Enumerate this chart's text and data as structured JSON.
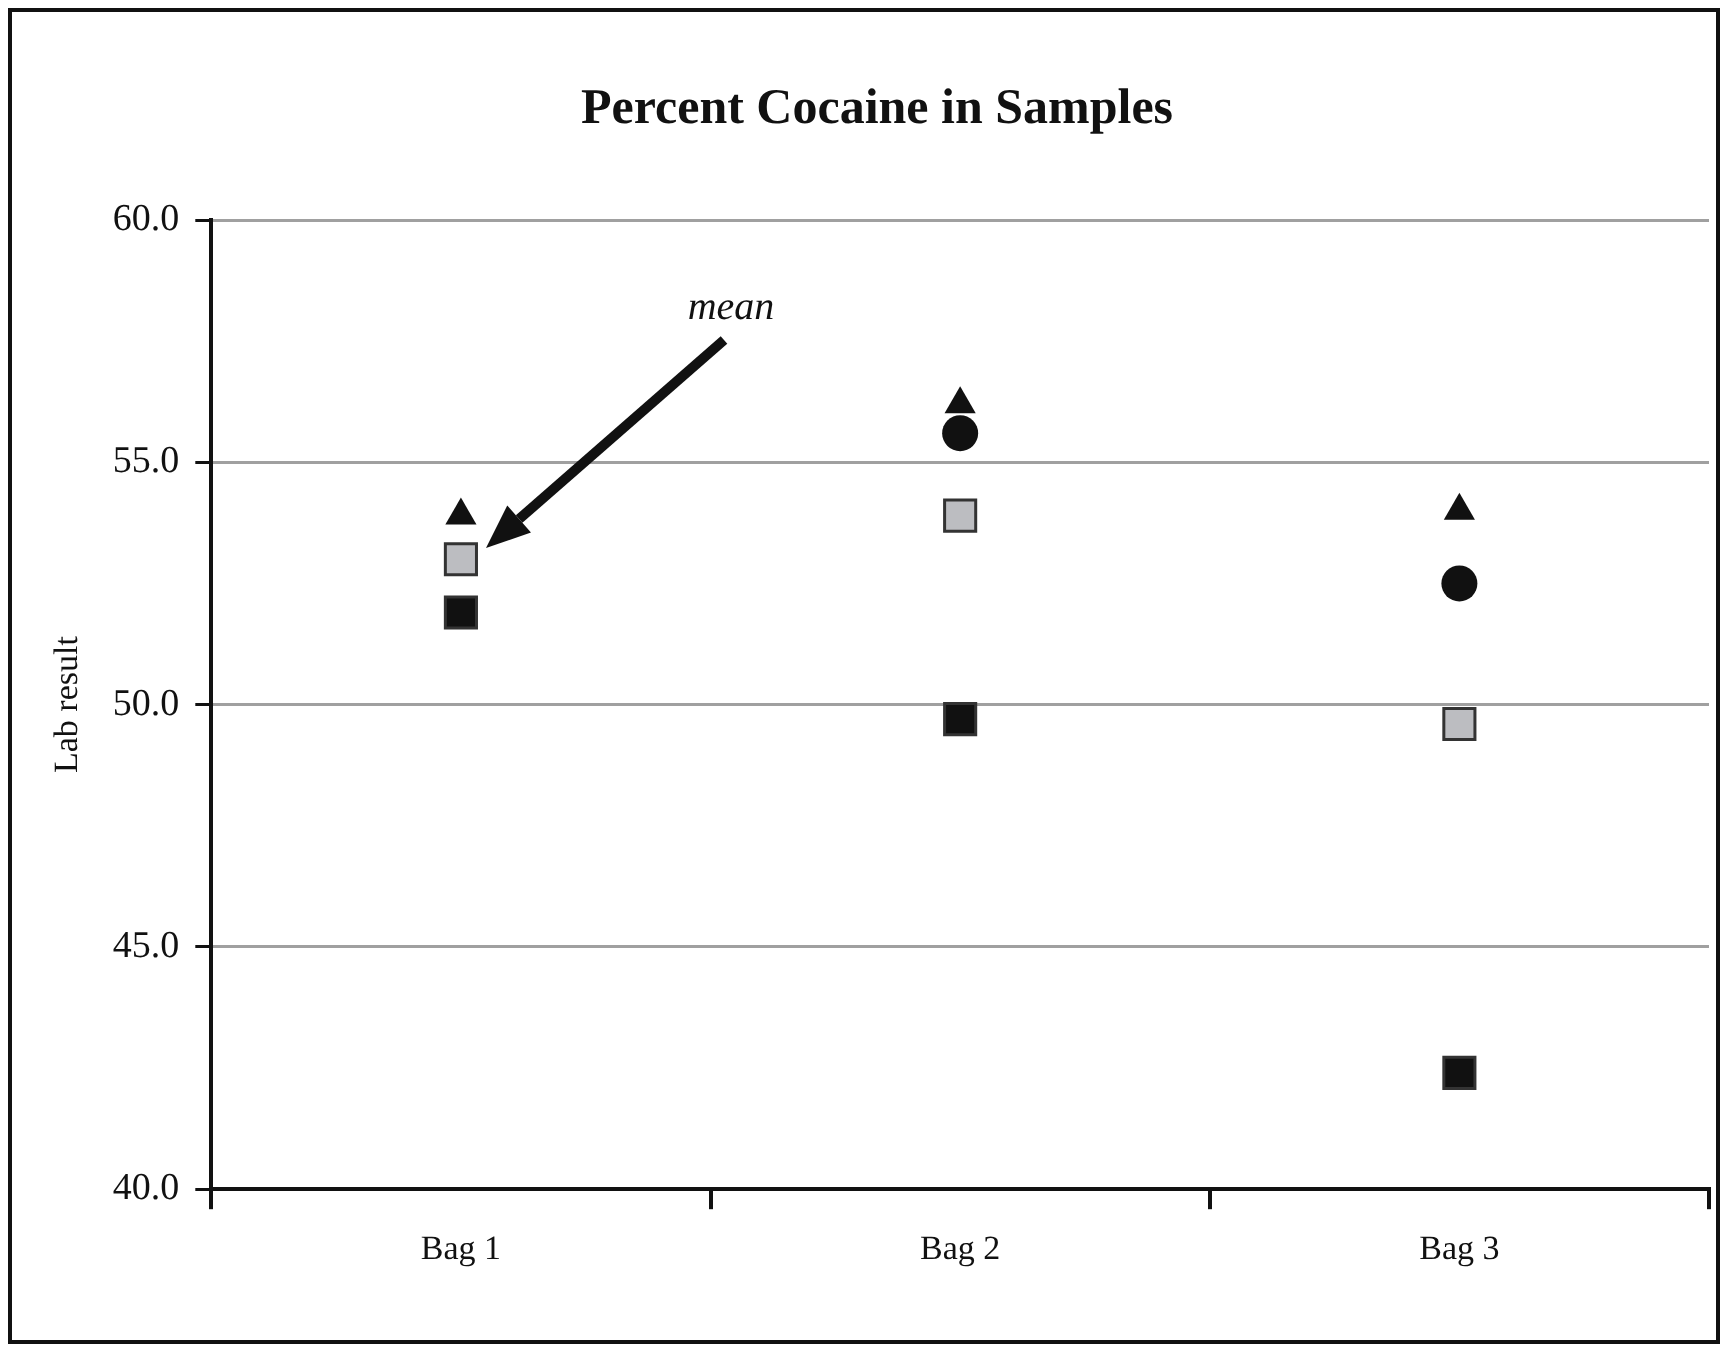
{
  "chart_data": {
    "type": "scatter",
    "title": "Percent Cocaine in Samples",
    "ylabel": "Lab result",
    "categories": [
      "Bag 1",
      "Bag 2",
      "Bag 3"
    ],
    "series": [
      {
        "color": "#111111",
        "marker": "triangle",
        "values": [
          53.9,
          56.2,
          54.0
        ]
      },
      {
        "color": "#111111",
        "marker": "circle",
        "values": [
          null,
          55.6,
          52.5
        ]
      },
      {
        "color": "#bcbdc1",
        "marker": "square",
        "values": [
          53.0,
          53.9,
          49.6
        ]
      },
      {
        "color": "#111111",
        "marker": "square",
        "values": [
          51.9,
          49.7,
          42.4
        ]
      }
    ],
    "ylim": [
      40,
      60
    ],
    "yticks": [
      {
        "value": 40,
        "label": "40.0"
      },
      {
        "value": 45,
        "label": "45.0"
      },
      {
        "value": 50,
        "label": "50.0"
      },
      {
        "value": 55,
        "label": "55.0"
      },
      {
        "value": 60,
        "label": "60.0"
      }
    ],
    "grid": "y",
    "legend": false,
    "annotations": [
      "mean"
    ]
  }
}
